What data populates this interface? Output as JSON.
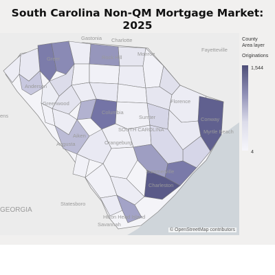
{
  "title": "South Carolina Non-QM Mortgage Market: 2025",
  "legend": {
    "layer_title": "County",
    "layer_subtitle": "Area layer",
    "measure": "Originations",
    "max": "1,544",
    "min": "4",
    "color_high": "#4e4e78",
    "color_low": "#f6f6fb"
  },
  "map_labels": {
    "gastonia": "Gastonia",
    "charlotte": "Charlotte",
    "rock_hill": "Rock Hill",
    "monroe": "Monroe",
    "fayetteville": "Fayetteville",
    "greer": "Greer",
    "anderson": "Anderson",
    "greenwood": "Greenwood",
    "columbia": "Columbia",
    "sumter": "Sumter",
    "florence": "Florence",
    "south_carolina": "SOUTH CAROLINA",
    "conway": "Conway",
    "myrtle_beach": "Myrtle Beach",
    "aiken": "Aiken",
    "augusta": "Augusta",
    "orangeburg": "Orangeburg",
    "summerville": "Summerville",
    "charleston": "Charleston",
    "georgia": "GEORGIA",
    "statesboro": "Statesboro",
    "hilton_head": "Hilton Head Island",
    "savannah": "Savannah",
    "ens": "ens"
  },
  "attribution": "© OpenStreetMap contributors"
}
